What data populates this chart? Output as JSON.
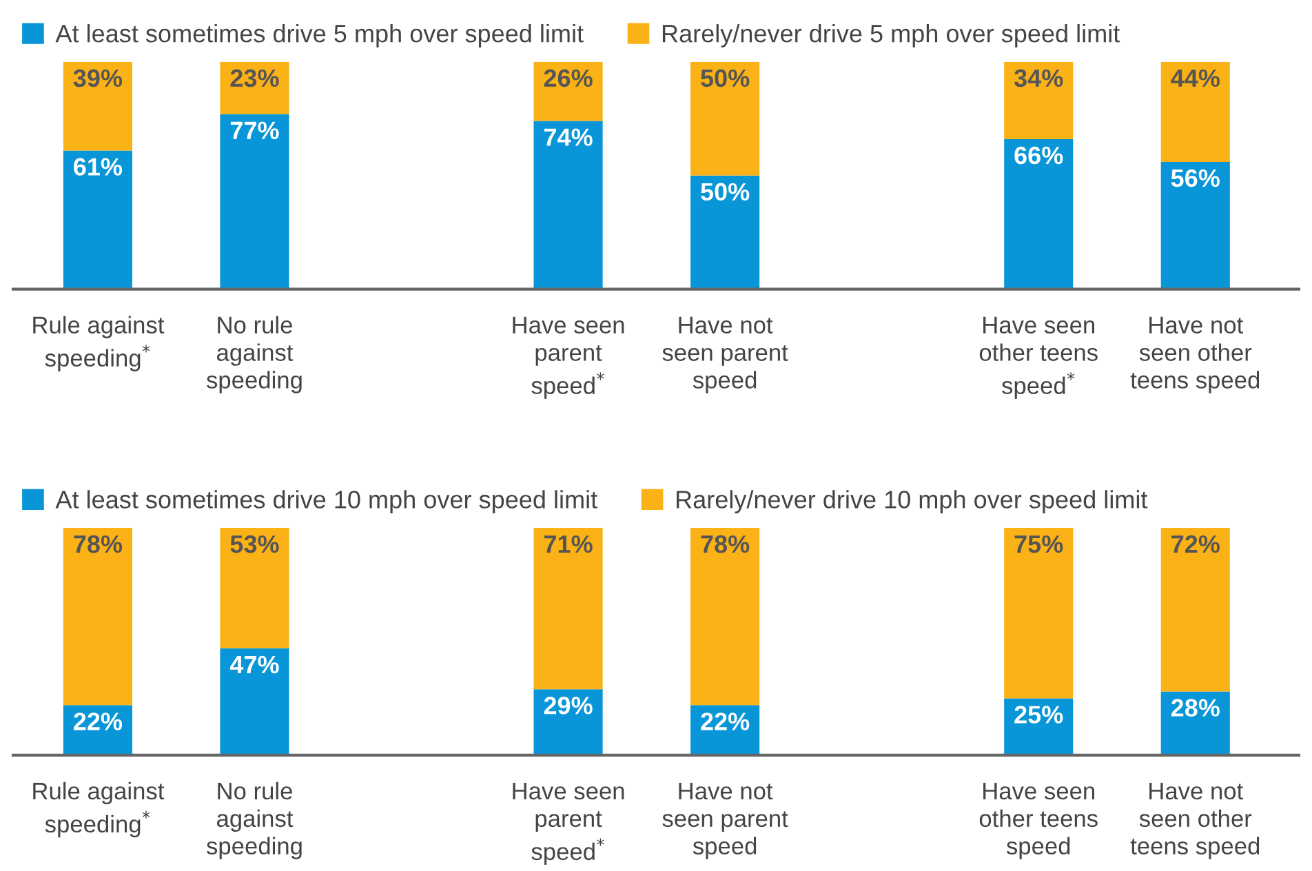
{
  "chart_data": [
    {
      "type": "bar",
      "stacked": true,
      "legend": "top",
      "grid": false,
      "tick_labels": "x",
      "ylim": [
        0,
        100
      ],
      "categories": [
        "Rule against\nspeeding$^{*}$",
        "No rule\nagainst\nspeeding",
        null,
        "Have seen\nparent\nspeed$^{*}$",
        "Have not\nseen parent\nspeed",
        null,
        "Have seen\nother teens\nspeed$^{*}$",
        "Have not\nseen other\nteens speed"
      ],
      "series": [
        {
          "name": "At least sometimes drive 5 mph over speed limit",
          "color": "#0996d8",
          "values": [
            61,
            77,
            null,
            74,
            50,
            null,
            66,
            56
          ],
          "value_labels": [
            "61%",
            "77%",
            null,
            "74%",
            "50%",
            null,
            "66%",
            "56%"
          ]
        },
        {
          "name": "Rarely/never drive 5 mph over speed limit",
          "color": "#fbb217",
          "values": [
            39,
            23,
            null,
            26,
            50,
            null,
            34,
            44
          ],
          "value_labels": [
            "39%",
            "23%",
            null,
            "26%",
            "50%",
            null,
            "34%",
            "44%"
          ]
        }
      ]
    },
    {
      "type": "bar",
      "stacked": true,
      "legend": "top",
      "grid": false,
      "tick_labels": "x",
      "ylim": [
        0,
        100
      ],
      "categories": [
        "Rule against\nspeeding$^{*}$",
        "No rule\nagainst\nspeeding",
        null,
        "Have seen\nparent\nspeed$^{*}$",
        "Have not\nseen parent\nspeed",
        null,
        "Have seen\nother teens\nspeed",
        "Have not\nseen other\nteens speed"
      ],
      "series": [
        {
          "name": "At least sometimes drive 10 mph over speed limit",
          "color": "#0996d8",
          "values": [
            22,
            47,
            null,
            29,
            22,
            null,
            25,
            28
          ],
          "value_labels": [
            "22%",
            "47%",
            null,
            "29%",
            "22%",
            null,
            "25%",
            "28%"
          ]
        },
        {
          "name": "Rarely/never drive 10 mph over speed limit",
          "color": "#fbb217",
          "values": [
            78,
            53,
            null,
            71,
            78,
            null,
            75,
            72
          ],
          "value_labels": [
            "78%",
            "53%",
            null,
            "71%",
            "78%",
            null,
            "75%",
            "72%"
          ]
        }
      ]
    }
  ]
}
